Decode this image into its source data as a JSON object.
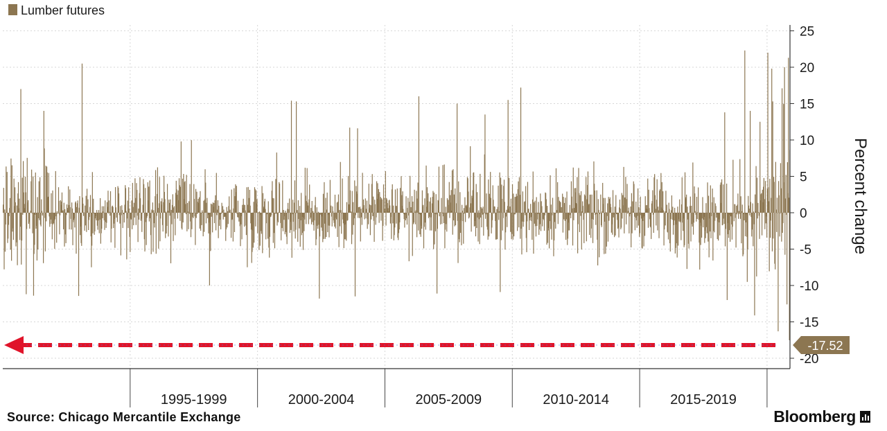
{
  "chart_data": {
    "type": "bar",
    "title": "",
    "legend": {
      "label": "Lumber futures",
      "color": "#8c7651",
      "position": "top-left"
    },
    "ylabel": "Percent change",
    "xlabel": "",
    "ylim": [
      -21,
      26
    ],
    "y_ticks": [
      "25",
      "20",
      "15",
      "10",
      "5",
      "0",
      "-5",
      "-10",
      "-15",
      "-20"
    ],
    "y_axis_side": "right",
    "grid": true,
    "x_range": [
      1990.0,
      2020.9
    ],
    "x_periods": [
      "1995-1999",
      "2000-2004",
      "2005-2009",
      "2010-2014",
      "2015-2019"
    ],
    "x_period_starts": [
      1995,
      2000,
      2005,
      2010,
      2015,
      2020
    ],
    "highlight": {
      "label": "-17.52",
      "value": -17.52,
      "line_color": "#e0142a",
      "label_color": "#8c7651"
    },
    "series": [
      {
        "name": "Lumber futures",
        "color": "#8c7651",
        "frequency": "weekly",
        "start": 1990.0,
        "step": 0.01923,
        "notable_points": [
          {
            "x": 1990.7,
            "y": 17.0
          },
          {
            "x": 1990.9,
            "y": -11.2
          },
          {
            "x": 1991.2,
            "y": -11.4
          },
          {
            "x": 1991.6,
            "y": 14.0
          },
          {
            "x": 1993.1,
            "y": 20.5
          },
          {
            "x": 1998.1,
            "y": -10.0
          },
          {
            "x": 2001.3,
            "y": 15.4
          },
          {
            "x": 2001.5,
            "y": 15.3
          },
          {
            "x": 2002.4,
            "y": -11.8
          },
          {
            "x": 2003.6,
            "y": 11.7
          },
          {
            "x": 2003.8,
            "y": -11.5
          },
          {
            "x": 2003.9,
            "y": 11.6
          },
          {
            "x": 2006.3,
            "y": 16.0
          },
          {
            "x": 2007.8,
            "y": 15.0
          },
          {
            "x": 2008.9,
            "y": 13.5
          },
          {
            "x": 2009.5,
            "y": -10.9
          },
          {
            "x": 2009.8,
            "y": 15.5
          },
          {
            "x": 2010.3,
            "y": 17.2
          },
          {
            "x": 2018.3,
            "y": 13.8
          },
          {
            "x": 2018.4,
            "y": -12.0
          },
          {
            "x": 2019.1,
            "y": 22.3
          },
          {
            "x": 2019.3,
            "y": 14.0
          },
          {
            "x": 2019.7,
            "y": 12.5
          },
          {
            "x": 2020.0,
            "y": 22.0
          },
          {
            "x": 2020.2,
            "y": 15.3
          },
          {
            "x": 2020.4,
            "y": -16.3
          },
          {
            "x": 2020.55,
            "y": 17.1
          },
          {
            "x": 2020.65,
            "y": 20.0
          },
          {
            "x": 2020.75,
            "y": -12.6
          },
          {
            "x": 2020.8,
            "y": 21.3
          },
          {
            "x": 2020.85,
            "y": -17.52
          }
        ],
        "typical_weekly_range": [
          -5,
          5
        ]
      }
    ]
  },
  "footer": {
    "source": "Source: Chicago Mercantile Exchange",
    "brand": "Bloomberg"
  }
}
